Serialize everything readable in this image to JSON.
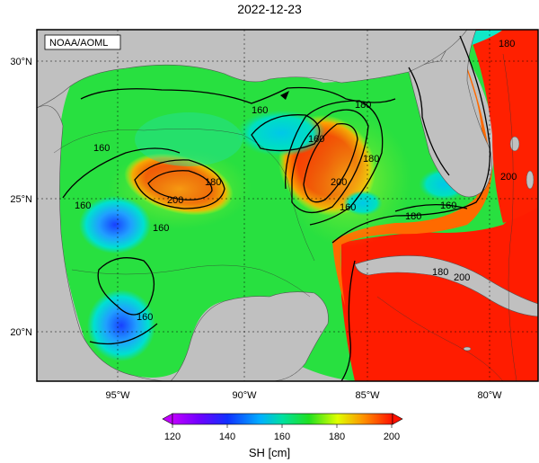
{
  "title": "2022-12-23",
  "credit": "NOAA/AOML",
  "lat_ticks": [
    "30°N",
    "25°N",
    "20°N"
  ],
  "lon_ticks": [
    "95°W",
    "90°W",
    "85°W",
    "80°W"
  ],
  "contours": {
    "labels": [
      "160",
      "160",
      "160",
      "160",
      "180",
      "200",
      "180",
      "160",
      "160",
      "180",
      "200",
      "180",
      "160",
      "160",
      "180",
      "200",
      "180",
      "200"
    ]
  },
  "colorbar": {
    "label": "SH [cm]",
    "ticks": [
      "120",
      "140",
      "160",
      "180",
      "200"
    ],
    "min": 120,
    "max": 200
  },
  "colors": {
    "land": "#c0c0c0",
    "hot": "#ff1800",
    "warm": "#ff9900",
    "mid": "#22e022",
    "cool": "#00d0c0",
    "cold": "#1060ff"
  }
}
